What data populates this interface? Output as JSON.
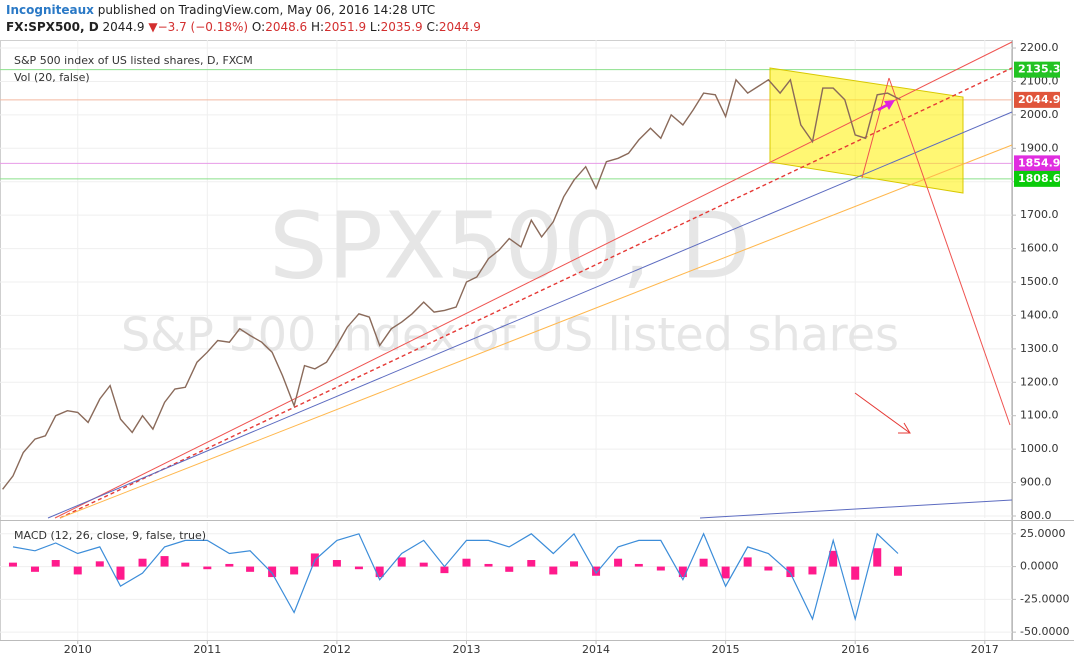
{
  "header": {
    "author": "Incogniteaux",
    "published": "published on TradingView.com, May 06, 2016 14:28 UTC",
    "symbol": "FX:SPX500, D",
    "last": "2044.9",
    "change": "−3.7 (−0.18%)",
    "ohlc": [
      {
        "label": "O:",
        "value": "2048.6"
      },
      {
        "label": "H:",
        "value": "2051.9"
      },
      {
        "label": "L:",
        "value": "2035.9"
      },
      {
        "label": "C:",
        "value": "2044.9"
      }
    ]
  },
  "chart_data": [
    {
      "type": "line",
      "watermark": "SPX500, D",
      "watermark_subtitle": "S&P 500 index of US listed shares",
      "volume_label": "Vol (20, false)",
      "x": [
        2009.42,
        2009.5,
        2009.58,
        2009.67,
        2009.75,
        2009.83,
        2009.92,
        2010.0,
        2010.08,
        2010.17,
        2010.25,
        2010.33,
        2010.42,
        2010.5,
        2010.58,
        2010.67,
        2010.75,
        2010.83,
        2010.92,
        2011.0,
        2011.08,
        2011.17,
        2011.25,
        2011.33,
        2011.42,
        2011.5,
        2011.58,
        2011.67,
        2011.75,
        2011.83,
        2011.92,
        2012.0,
        2012.08,
        2012.17,
        2012.25,
        2012.33,
        2012.42,
        2012.5,
        2012.58,
        2012.67,
        2012.75,
        2012.83,
        2012.92,
        2013.0,
        2013.08,
        2013.17,
        2013.25,
        2013.33,
        2013.42,
        2013.5,
        2013.58,
        2013.67,
        2013.75,
        2013.83,
        2013.92,
        2014.0,
        2014.08,
        2014.17,
        2014.25,
        2014.33,
        2014.42,
        2014.5,
        2014.58,
        2014.67,
        2014.75,
        2014.83,
        2014.92,
        2015.0,
        2015.08,
        2015.17,
        2015.25,
        2015.33,
        2015.42,
        2015.5,
        2015.58,
        2015.67,
        2015.75,
        2015.83,
        2015.92,
        2016.0,
        2016.08,
        2016.17,
        2016.25,
        2016.35
      ],
      "series": [
        {
          "name": "S&P 500 index of US listed shares, D, FXCM",
          "color": "#8a6a5a",
          "values": [
            880,
            920,
            990,
            1030,
            1040,
            1100,
            1115,
            1110,
            1080,
            1150,
            1190,
            1090,
            1050,
            1100,
            1060,
            1140,
            1180,
            1185,
            1260,
            1290,
            1325,
            1320,
            1360,
            1340,
            1320,
            1290,
            1220,
            1130,
            1250,
            1240,
            1260,
            1310,
            1365,
            1405,
            1395,
            1310,
            1360,
            1380,
            1405,
            1440,
            1410,
            1415,
            1425,
            1500,
            1515,
            1570,
            1595,
            1630,
            1605,
            1685,
            1635,
            1680,
            1755,
            1805,
            1845,
            1780,
            1860,
            1870,
            1885,
            1925,
            1960,
            1930,
            2000,
            1970,
            2015,
            2065,
            2060,
            1995,
            2105,
            2065,
            2085,
            2105,
            2065,
            2105,
            1970,
            1920,
            2080,
            2080,
            2045,
            1940,
            1930,
            2060,
            2065,
            2045
          ]
        }
      ],
      "xlim": [
        2009.4,
        2017.21
      ],
      "xticks": [
        2010,
        2011,
        2012,
        2013,
        2014,
        2015,
        2016,
        2017
      ],
      "ylim": [
        794,
        2224
      ],
      "yticks": [
        {
          "value": 800,
          "label": "800.0"
        },
        {
          "value": 900,
          "label": "900.0"
        },
        {
          "value": 1000,
          "label": "1000.0"
        },
        {
          "value": 1100,
          "label": "1100.0"
        },
        {
          "value": 1200,
          "label": "1200.0"
        },
        {
          "value": 1300,
          "label": "1300.0"
        },
        {
          "value": 1400,
          "label": "1400.0"
        },
        {
          "value": 1500,
          "label": "1500.0"
        },
        {
          "value": 1600,
          "label": "1600.0"
        },
        {
          "value": 1700,
          "label": "1700.0"
        },
        {
          "value": 1800,
          "label": "1800.0"
        },
        {
          "value": 1900,
          "label": "1900.0"
        },
        {
          "value": 2000,
          "label": "2000.0"
        },
        {
          "value": 2100,
          "label": "2100.0"
        },
        {
          "value": 2200,
          "label": "2200.0"
        }
      ],
      "price_lines": [
        {
          "value": 2135.3,
          "color": "#22c322",
          "line": "#8be08b"
        },
        {
          "value": 2044.9,
          "color": "#e0553b",
          "line": "#f3b9a0"
        },
        {
          "value": 1854.9,
          "color": "#e02ee0",
          "line": "#e79be7"
        },
        {
          "value": 1808.6,
          "color": "#0acb0a",
          "line": "#8be08b"
        }
      ],
      "grid": true
    },
    {
      "type": "macd",
      "title": "MACD (12, 26, close, 9, false, true)",
      "x": [
        2009.5,
        2009.67,
        2009.83,
        2010.0,
        2010.17,
        2010.33,
        2010.5,
        2010.67,
        2010.83,
        2011.0,
        2011.17,
        2011.33,
        2011.5,
        2011.67,
        2011.83,
        2012.0,
        2012.17,
        2012.33,
        2012.5,
        2012.67,
        2012.83,
        2013.0,
        2013.17,
        2013.33,
        2013.5,
        2013.67,
        2013.83,
        2014.0,
        2014.17,
        2014.33,
        2014.5,
        2014.67,
        2014.83,
        2015.0,
        2015.17,
        2015.33,
        2015.5,
        2015.67,
        2015.83,
        2016.0,
        2016.17,
        2016.33
      ],
      "series": [
        {
          "color": "#3c8dd9",
          "values": [
            15,
            12,
            18,
            10,
            15,
            -15,
            -5,
            15,
            20,
            20,
            10,
            12,
            -5,
            -35,
            5,
            20,
            25,
            -10,
            10,
            20,
            0,
            20,
            20,
            15,
            25,
            10,
            25,
            -5,
            15,
            20,
            20,
            -10,
            25,
            -15,
            15,
            10,
            -5,
            -40,
            20,
            -40,
            25,
            10
          ]
        }
      ],
      "histogram": {
        "color": "#ff1a8c",
        "values": [
          3,
          -4,
          5,
          -6,
          4,
          -10,
          6,
          8,
          3,
          -2,
          2,
          -4,
          -8,
          -6,
          10,
          5,
          -2,
          -8,
          7,
          3,
          -5,
          6,
          2,
          -4,
          5,
          -6,
          4,
          -7,
          6,
          2,
          -3,
          -8,
          6,
          -9,
          7,
          -3,
          -8,
          -6,
          12,
          -10,
          14,
          -7
        ]
      },
      "xlim": [
        2009.4,
        2017.21
      ],
      "ylim": [
        -56,
        34
      ],
      "yticks": [
        {
          "value": 25,
          "label": "25.0000"
        },
        {
          "value": 0,
          "label": "0.0000"
        },
        {
          "value": -25,
          "label": "-25.0000"
        },
        {
          "value": -50,
          "label": "-50.0000"
        }
      ],
      "grid": true
    }
  ]
}
